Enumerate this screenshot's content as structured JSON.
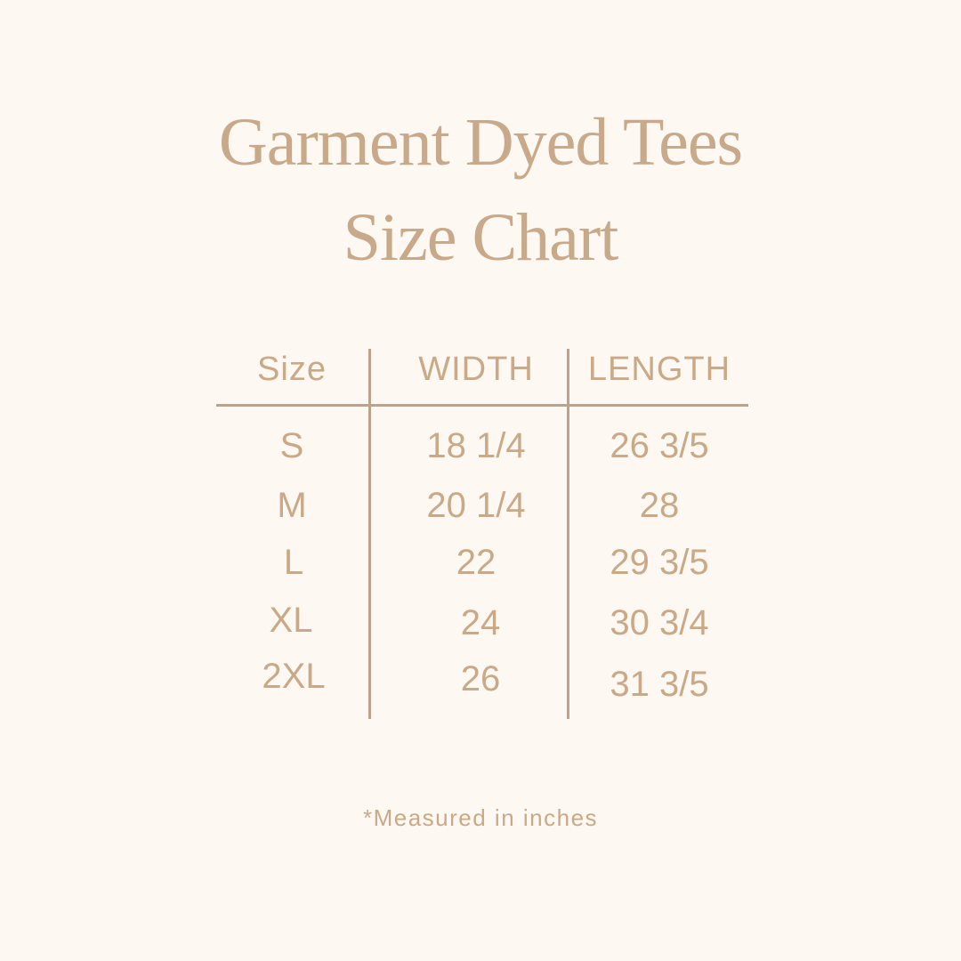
{
  "title": {
    "line1": "Garment Dyed Tees",
    "line2": "Size Chart"
  },
  "table": {
    "headers": [
      "Size",
      "WIDTH",
      "LENGTH"
    ],
    "rows": [
      [
        "S",
        "18 1/4",
        "26 3/5"
      ],
      [
        "M",
        "20 1/4",
        "28"
      ],
      [
        "L",
        "22",
        "29 3/5"
      ],
      [
        "XL",
        "24",
        "30 3/4"
      ],
      [
        "2XL",
        "26",
        "31 3/5"
      ]
    ]
  },
  "footnote": "*Measured in inches",
  "colors": {
    "background": "#fdf8f1",
    "text": "#c9a987",
    "rule": "#bca38d"
  }
}
